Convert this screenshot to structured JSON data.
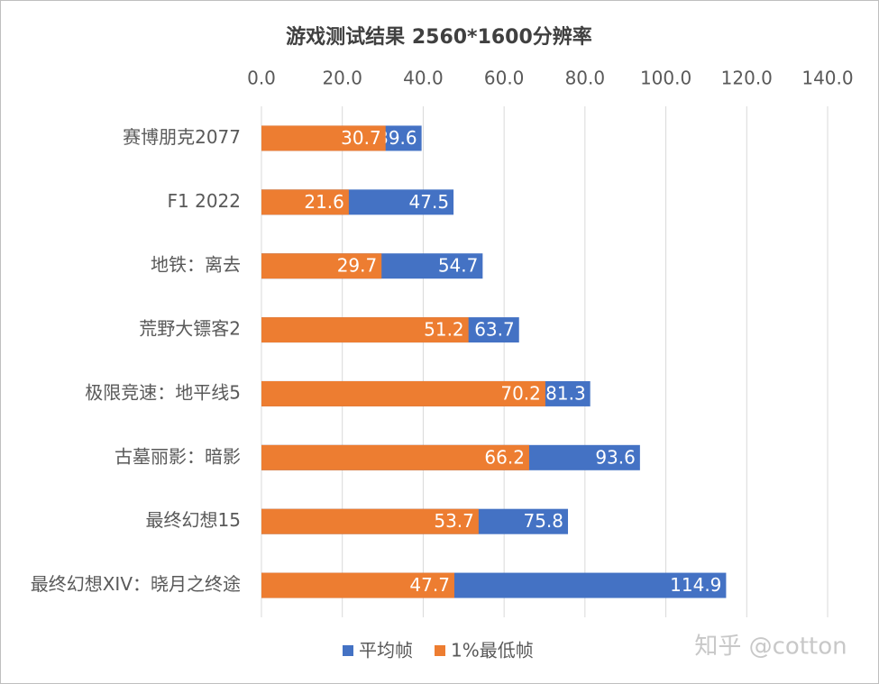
{
  "chart_data": {
    "type": "bar",
    "orientation": "horizontal",
    "title": "游戏测试结果 2560*1600分辨率",
    "categories": [
      "赛博朋克2077",
      "F1 2022",
      "地铁：离去",
      "荒野大镖客2",
      "极限竞速：地平线5",
      "古墓丽影：暗影",
      "最终幻想15",
      "最终幻想XIV：晓月之终途"
    ],
    "series": [
      {
        "name": "平均帧",
        "color": "#4472c4",
        "values": [
          39.6,
          47.5,
          54.7,
          63.7,
          81.3,
          93.6,
          75.8,
          114.9
        ]
      },
      {
        "name": "1%最低帧",
        "color": "#ed7d31",
        "values": [
          30.7,
          21.6,
          29.7,
          51.2,
          70.2,
          66.2,
          53.7,
          47.7
        ]
      }
    ],
    "xlim": [
      0,
      140
    ],
    "xticks": [
      {
        "value": 0,
        "label": "0.0"
      },
      {
        "value": 20,
        "label": "20.0"
      },
      {
        "value": 40,
        "label": "40.0"
      },
      {
        "value": 60,
        "label": "60.0"
      },
      {
        "value": 80,
        "label": "80.0"
      },
      {
        "value": 100,
        "label": "100.0"
      },
      {
        "value": 120,
        "label": "120.0"
      },
      {
        "value": 140,
        "label": "140.0"
      }
    ],
    "grid": true,
    "legend": "bottom",
    "watermark": "知乎 @cotton"
  }
}
